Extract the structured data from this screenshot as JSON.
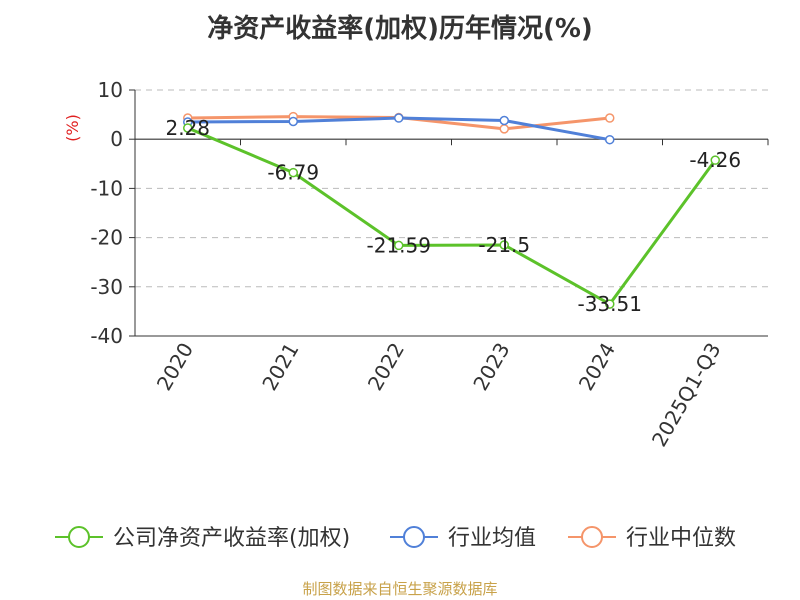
{
  "colors": {
    "company": "#5cc22a",
    "industry_avg": "#5080d8",
    "industry_median": "#f5956a",
    "unit_label": "#e02020",
    "source": "#c8a24a",
    "axis": "#333333",
    "grid": "#bbbbbb"
  },
  "chart_data": {
    "type": "line",
    "title": "净资产收益率(加权)历年情况(%)",
    "ylabel": "(%)",
    "xlabel": "",
    "categories": [
      "2020",
      "2021",
      "2022",
      "2023",
      "2024",
      "2025Q1-Q3"
    ],
    "ylim": [
      -40,
      10
    ],
    "yticks": [
      10,
      0,
      -10,
      -20,
      -30,
      -40
    ],
    "grid": "horizontal dashed",
    "legend_position": "bottom",
    "series": [
      {
        "name": "公司净资产收益率(加权)",
        "color": "#5cc22a",
        "values": [
          2.28,
          -6.79,
          -21.59,
          -21.5,
          -33.51,
          -4.26
        ],
        "labels": [
          "2.28",
          "-6.79",
          "-21.59",
          "-21.5",
          "-33.51",
          "-4.26"
        ]
      },
      {
        "name": "行业均值",
        "color": "#5080d8",
        "values": [
          3.5,
          3.6,
          4.3,
          3.8,
          -0.1,
          null
        ]
      },
      {
        "name": "行业中位数",
        "color": "#f5956a",
        "values": [
          4.3,
          4.6,
          4.4,
          2.1,
          4.3,
          null
        ]
      }
    ]
  },
  "footer": {
    "source": "制图数据来自恒生聚源数据库"
  }
}
